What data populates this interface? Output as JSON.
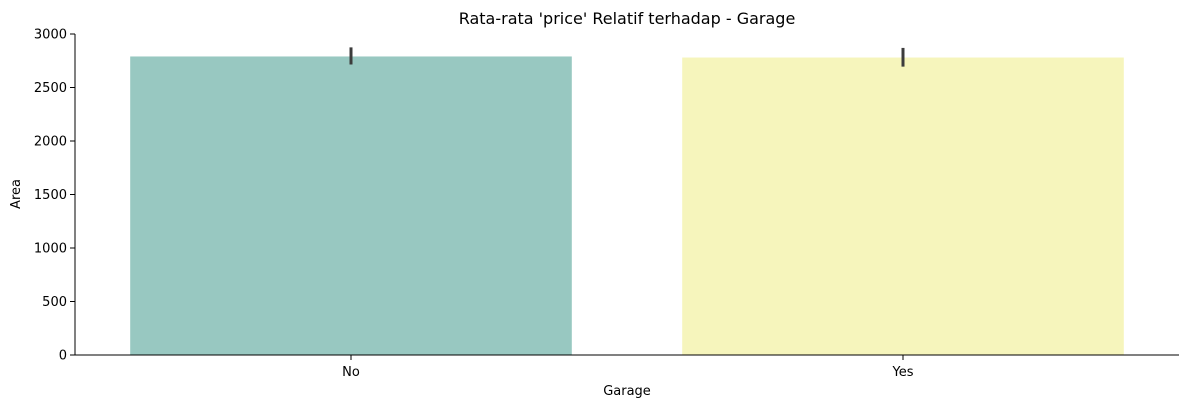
{
  "chart_data": {
    "type": "bar",
    "title": "Rata-rata 'price' Relatif terhadap - Garage",
    "xlabel": "Garage",
    "ylabel": "Area",
    "categories": [
      "No",
      "Yes"
    ],
    "values": [
      2790,
      2780
    ],
    "error_bars": [
      {
        "low": 2715,
        "high": 2875
      },
      {
        "low": 2695,
        "high": 2870
      }
    ],
    "colors": [
      "#98c8c1",
      "#f6f5bc"
    ],
    "error_bar_color": "#3c3c3c",
    "ylim": [
      0,
      3000
    ],
    "yticks": [
      0,
      500,
      1000,
      1500,
      2000,
      2500,
      3000
    ],
    "ytick_labels": [
      "0",
      "500",
      "1000",
      "1500",
      "2000",
      "2500",
      "3000"
    ],
    "grid": false,
    "legend": "none"
  }
}
